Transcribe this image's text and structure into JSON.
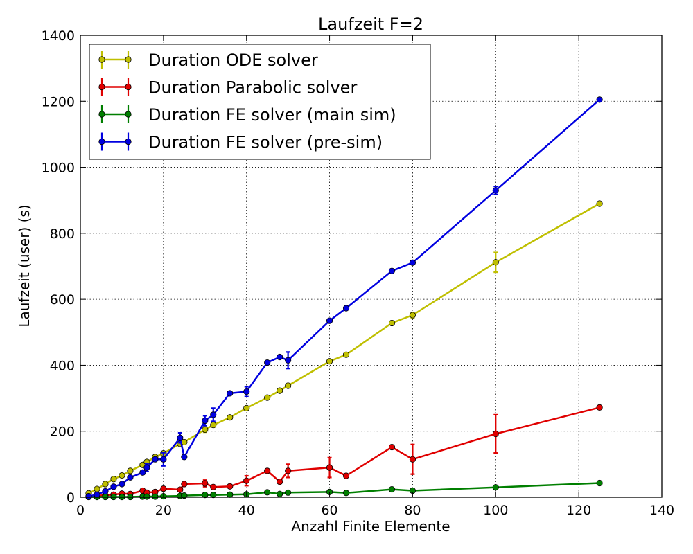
{
  "chart_data": {
    "type": "line",
    "title": "Laufzeit F=2",
    "xlabel": "Anzahl Finite Elemente",
    "ylabel": "Laufzeit (user) (s)",
    "xlim": [
      0,
      140
    ],
    "ylim": [
      0,
      1400
    ],
    "xticks": [
      0,
      20,
      40,
      60,
      80,
      100,
      120,
      140
    ],
    "yticks": [
      0,
      200,
      400,
      600,
      800,
      1000,
      1200,
      1400
    ],
    "grid": true,
    "legend_position": "top-left",
    "series": [
      {
        "name": "Duration ODE solver",
        "color": "#bfbf00",
        "x": [
          2,
          4,
          6,
          8,
          10,
          12,
          15,
          16,
          18,
          20,
          24,
          25,
          30,
          32,
          36,
          40,
          45,
          48,
          50,
          60,
          64,
          75,
          80,
          100,
          125
        ],
        "y": [
          12,
          25,
          40,
          55,
          66,
          80,
          98,
          107,
          122,
          133,
          162,
          167,
          205,
          219,
          242,
          270,
          302,
          323,
          338,
          412,
          432,
          528,
          552,
          712,
          890
        ],
        "err": [
          0,
          0,
          0,
          0,
          0,
          0,
          0,
          0,
          0,
          5,
          5,
          0,
          8,
          6,
          0,
          0,
          0,
          0,
          0,
          0,
          0,
          0,
          8,
          30,
          0
        ]
      },
      {
        "name": "Duration Parabolic solver",
        "color": "#e00000",
        "x": [
          2,
          4,
          6,
          8,
          10,
          12,
          15,
          16,
          18,
          20,
          24,
          25,
          30,
          32,
          36,
          40,
          45,
          48,
          50,
          60,
          64,
          75,
          80,
          100,
          125
        ],
        "y": [
          3,
          5,
          6,
          8,
          11,
          10,
          20,
          14,
          16,
          26,
          23,
          40,
          42,
          31,
          33,
          50,
          80,
          47,
          80,
          90,
          65,
          152,
          115,
          192,
          272
        ],
        "err": [
          0,
          0,
          0,
          0,
          0,
          0,
          0,
          0,
          0,
          0,
          0,
          0,
          10,
          0,
          0,
          15,
          0,
          0,
          20,
          30,
          0,
          0,
          45,
          58,
          0
        ]
      },
      {
        "name": "Duration FE solver (main sim)",
        "color": "#007f00",
        "x": [
          2,
          4,
          6,
          8,
          10,
          12,
          15,
          16,
          18,
          20,
          24,
          25,
          30,
          32,
          36,
          40,
          45,
          48,
          50,
          60,
          64,
          75,
          80,
          100,
          125
        ],
        "y": [
          1,
          1,
          1,
          1,
          1,
          1,
          2,
          2,
          2,
          3,
          4,
          5,
          7,
          7,
          8,
          9,
          15,
          10,
          14,
          16,
          13,
          24,
          20,
          30,
          43
        ],
        "err": [
          0,
          0,
          0,
          0,
          0,
          0,
          0,
          0,
          0,
          0,
          0,
          0,
          0,
          0,
          0,
          0,
          0,
          0,
          0,
          0,
          0,
          0,
          0,
          0,
          0
        ]
      },
      {
        "name": "Duration FE solver (pre-sim)",
        "color": "#0000e0",
        "x": [
          2,
          4,
          6,
          8,
          10,
          12,
          15,
          16,
          18,
          20,
          24,
          25,
          30,
          32,
          36,
          40,
          45,
          48,
          50,
          60,
          64,
          75,
          80,
          100,
          125
        ],
        "y": [
          3,
          8,
          18,
          32,
          40,
          60,
          75,
          90,
          115,
          115,
          180,
          122,
          232,
          250,
          315,
          320,
          408,
          425,
          415,
          535,
          573,
          686,
          711,
          930,
          1205
        ],
        "err": [
          0,
          0,
          0,
          0,
          0,
          0,
          0,
          12,
          0,
          20,
          15,
          0,
          15,
          20,
          0,
          15,
          0,
          0,
          25,
          0,
          0,
          0,
          0,
          12,
          0
        ]
      }
    ]
  }
}
